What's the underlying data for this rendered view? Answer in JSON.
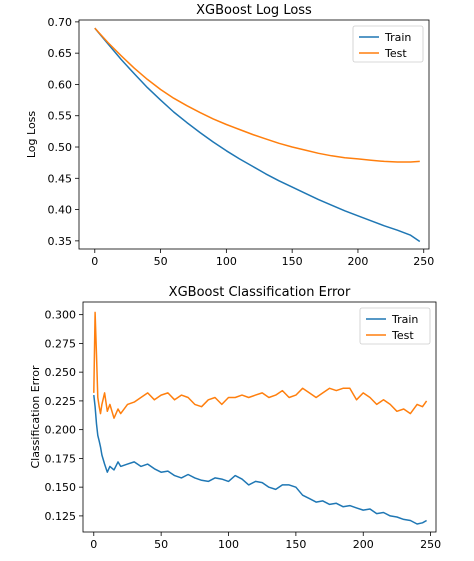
{
  "chart_data": [
    {
      "type": "line",
      "title": "XGBoost Log Loss",
      "xlabel": "",
      "ylabel": "Log Loss",
      "xlim": [
        -12,
        254
      ],
      "ylim": [
        0.337,
        0.703
      ],
      "xticks": [
        0,
        50,
        100,
        150,
        200,
        250
      ],
      "yticks": [
        0.35,
        0.4,
        0.45,
        0.5,
        0.55,
        0.6,
        0.65,
        0.7
      ],
      "legend": "top-right",
      "grid": false,
      "series": [
        {
          "name": "Train",
          "color": "#1f77b4",
          "x": [
            0,
            10,
            20,
            30,
            40,
            50,
            60,
            70,
            80,
            90,
            100,
            110,
            120,
            130,
            140,
            150,
            160,
            170,
            180,
            190,
            200,
            210,
            220,
            230,
            240,
            247
          ],
          "values": [
            0.69,
            0.665,
            0.64,
            0.617,
            0.595,
            0.575,
            0.556,
            0.539,
            0.523,
            0.508,
            0.494,
            0.481,
            0.469,
            0.457,
            0.446,
            0.436,
            0.426,
            0.416,
            0.407,
            0.398,
            0.39,
            0.382,
            0.374,
            0.367,
            0.359,
            0.349
          ]
        },
        {
          "name": "Test",
          "color": "#ff7f0e",
          "x": [
            0,
            10,
            20,
            30,
            40,
            50,
            60,
            70,
            80,
            90,
            100,
            110,
            120,
            130,
            140,
            150,
            160,
            170,
            180,
            190,
            200,
            210,
            220,
            230,
            240,
            247
          ],
          "values": [
            0.69,
            0.667,
            0.646,
            0.626,
            0.608,
            0.592,
            0.578,
            0.566,
            0.555,
            0.545,
            0.536,
            0.528,
            0.52,
            0.513,
            0.506,
            0.5,
            0.495,
            0.49,
            0.486,
            0.483,
            0.481,
            0.479,
            0.477,
            0.476,
            0.476,
            0.477
          ]
        }
      ]
    },
    {
      "type": "line",
      "title": "XGBoost Classification Error",
      "xlabel": "",
      "ylabel": "Classification Error",
      "xlim": [
        -8,
        254
      ],
      "ylim": [
        0.111,
        0.311
      ],
      "xticks": [
        0,
        50,
        100,
        150,
        200,
        250
      ],
      "yticks": [
        0.125,
        0.15,
        0.175,
        0.2,
        0.225,
        0.25,
        0.275,
        0.3
      ],
      "legend": "top-right",
      "grid": false,
      "series": [
        {
          "name": "Train",
          "color": "#1f77b4",
          "x": [
            0,
            1,
            2,
            3,
            4,
            5,
            6,
            8,
            10,
            12,
            15,
            18,
            20,
            25,
            30,
            35,
            40,
            45,
            50,
            55,
            60,
            65,
            70,
            75,
            80,
            85,
            90,
            95,
            100,
            105,
            110,
            115,
            120,
            125,
            130,
            135,
            140,
            145,
            150,
            155,
            160,
            165,
            170,
            175,
            180,
            185,
            190,
            195,
            200,
            205,
            210,
            215,
            220,
            225,
            230,
            235,
            240,
            244,
            247
          ],
          "values": [
            0.23,
            0.22,
            0.205,
            0.195,
            0.19,
            0.185,
            0.178,
            0.17,
            0.163,
            0.168,
            0.165,
            0.172,
            0.168,
            0.17,
            0.172,
            0.168,
            0.17,
            0.166,
            0.163,
            0.164,
            0.16,
            0.158,
            0.161,
            0.158,
            0.156,
            0.155,
            0.158,
            0.157,
            0.155,
            0.16,
            0.157,
            0.152,
            0.155,
            0.154,
            0.15,
            0.148,
            0.152,
            0.152,
            0.15,
            0.143,
            0.14,
            0.137,
            0.138,
            0.135,
            0.136,
            0.133,
            0.134,
            0.132,
            0.13,
            0.131,
            0.127,
            0.128,
            0.125,
            0.124,
            0.122,
            0.121,
            0.118,
            0.119,
            0.121
          ]
        },
        {
          "name": "Test",
          "color": "#ff7f0e",
          "x": [
            0,
            1,
            2,
            3,
            4,
            5,
            6,
            8,
            10,
            12,
            15,
            18,
            20,
            25,
            30,
            35,
            40,
            45,
            50,
            55,
            60,
            65,
            70,
            75,
            80,
            85,
            90,
            95,
            100,
            105,
            110,
            115,
            120,
            125,
            130,
            135,
            140,
            145,
            150,
            155,
            160,
            165,
            170,
            175,
            180,
            185,
            190,
            195,
            200,
            205,
            210,
            215,
            220,
            225,
            230,
            235,
            240,
            244,
            247
          ],
          "values": [
            0.232,
            0.302,
            0.265,
            0.228,
            0.22,
            0.214,
            0.222,
            0.232,
            0.216,
            0.222,
            0.21,
            0.218,
            0.214,
            0.222,
            0.224,
            0.228,
            0.232,
            0.226,
            0.23,
            0.232,
            0.226,
            0.23,
            0.228,
            0.222,
            0.22,
            0.226,
            0.228,
            0.222,
            0.228,
            0.228,
            0.23,
            0.228,
            0.23,
            0.232,
            0.228,
            0.23,
            0.234,
            0.228,
            0.23,
            0.236,
            0.232,
            0.228,
            0.232,
            0.236,
            0.234,
            0.236,
            0.236,
            0.226,
            0.232,
            0.228,
            0.222,
            0.226,
            0.222,
            0.216,
            0.218,
            0.214,
            0.222,
            0.22,
            0.225
          ]
        }
      ]
    }
  ]
}
